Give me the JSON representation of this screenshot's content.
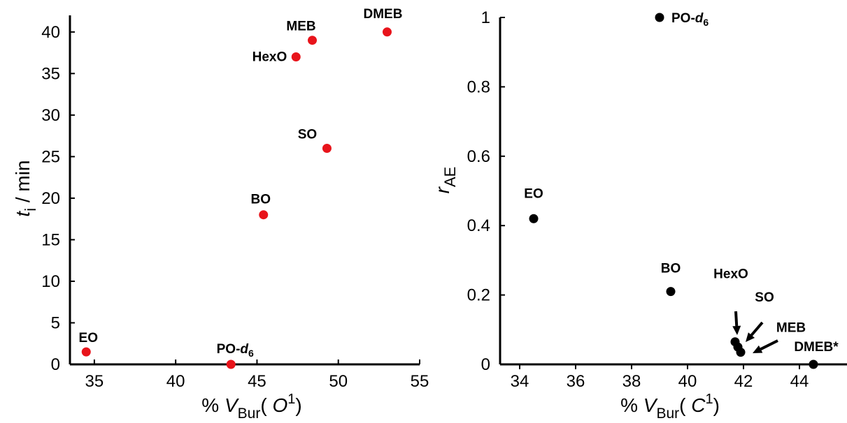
{
  "chart_data": [
    {
      "type": "scatter",
      "xlabel": {
        "prefix": "% ",
        "var": "V",
        "sub": "Bur",
        "open": "( ",
        "arg": "O",
        "sup": "1",
        "close": ")"
      },
      "ylabel": {
        "var": "t",
        "sub": "i",
        "rest": " / min"
      },
      "xlim": [
        33.5,
        55
      ],
      "ylim": [
        0,
        42
      ],
      "xticks": [
        "35",
        "40",
        "45",
        "50",
        "55"
      ],
      "yticks": [
        "0",
        "5",
        "10",
        "15",
        "20",
        "25",
        "30",
        "35",
        "40"
      ],
      "color": "#e8141b",
      "points": [
        {
          "label": "EO",
          "x": 34.5,
          "y": 1.5
        },
        {
          "label": "PO-d6",
          "text": "PO-",
          "italic": "d",
          "sub": "6",
          "x": 43.4,
          "y": 0
        },
        {
          "label": "BO",
          "x": 45.4,
          "y": 18
        },
        {
          "label": "HexO",
          "x": 47.4,
          "y": 37
        },
        {
          "label": "MEB",
          "x": 48.4,
          "y": 39
        },
        {
          "label": "SO",
          "x": 49.3,
          "y": 26
        },
        {
          "label": "DMEB",
          "x": 53.0,
          "y": 40
        }
      ]
    },
    {
      "type": "scatter",
      "xlabel": {
        "prefix": "% ",
        "var": "V",
        "sub": "Bur",
        "open": "( ",
        "arg": "C",
        "sup": "1",
        "close": ")"
      },
      "ylabel": {
        "var": "r",
        "sub": "AE"
      },
      "xlim": [
        33.3,
        45.7
      ],
      "ylim": [
        0,
        1
      ],
      "xticks": [
        "34",
        "36",
        "38",
        "40",
        "42",
        "44"
      ],
      "yticks": [
        "0",
        "0.2",
        "0.4",
        "0.6",
        "0.8",
        "1"
      ],
      "color": "#000000",
      "points": [
        {
          "label": "EO",
          "x": 34.5,
          "y": 0.42
        },
        {
          "label": "PO-d6",
          "text": "PO-",
          "italic": "d",
          "sub": "6",
          "x": 39.0,
          "y": 1.0
        },
        {
          "label": "BO",
          "x": 39.4,
          "y": 0.21
        },
        {
          "label": "HexO",
          "x": 41.7,
          "y": 0.065
        },
        {
          "label": "SO",
          "x": 41.8,
          "y": 0.05
        },
        {
          "label": "MEB",
          "x": 41.9,
          "y": 0.035
        },
        {
          "label": "DMEB*",
          "x": 44.5,
          "y": 0.0
        }
      ]
    }
  ]
}
